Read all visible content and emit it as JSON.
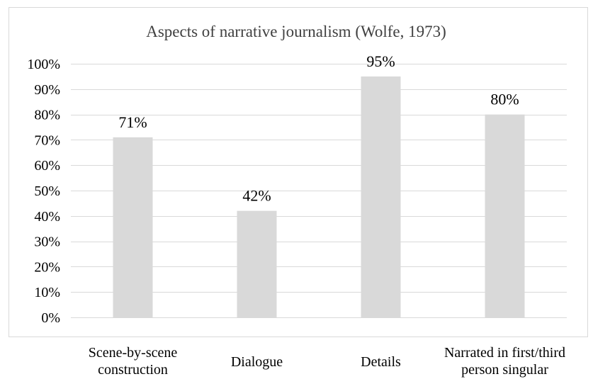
{
  "chart_data": {
    "type": "bar",
    "title": "Aspects of narrative journalism (Wolfe, 1973)",
    "categories": [
      [
        "Scene-by-scene",
        "construction"
      ],
      [
        "Dialogue"
      ],
      [
        "Details"
      ],
      [
        "Narrated in first/third",
        "person singular"
      ]
    ],
    "values": [
      71,
      42,
      95,
      80
    ],
    "data_labels": [
      "71%",
      "42%",
      "95%",
      "80%"
    ],
    "ylim": [
      0,
      100
    ],
    "yticks": [
      0,
      10,
      20,
      30,
      40,
      50,
      60,
      70,
      80,
      90,
      100
    ],
    "ytick_labels": [
      "0%",
      "10%",
      "20%",
      "30%",
      "40%",
      "50%",
      "60%",
      "70%",
      "80%",
      "90%",
      "100%"
    ],
    "xlabel": "",
    "ylabel": "",
    "grid": true,
    "legend": "none",
    "colors": {
      "bar": "#d9d9d9",
      "grid": "#d9d9d9",
      "frame": "#d9d9d9",
      "text": "#000000",
      "title": "#404040"
    }
  }
}
